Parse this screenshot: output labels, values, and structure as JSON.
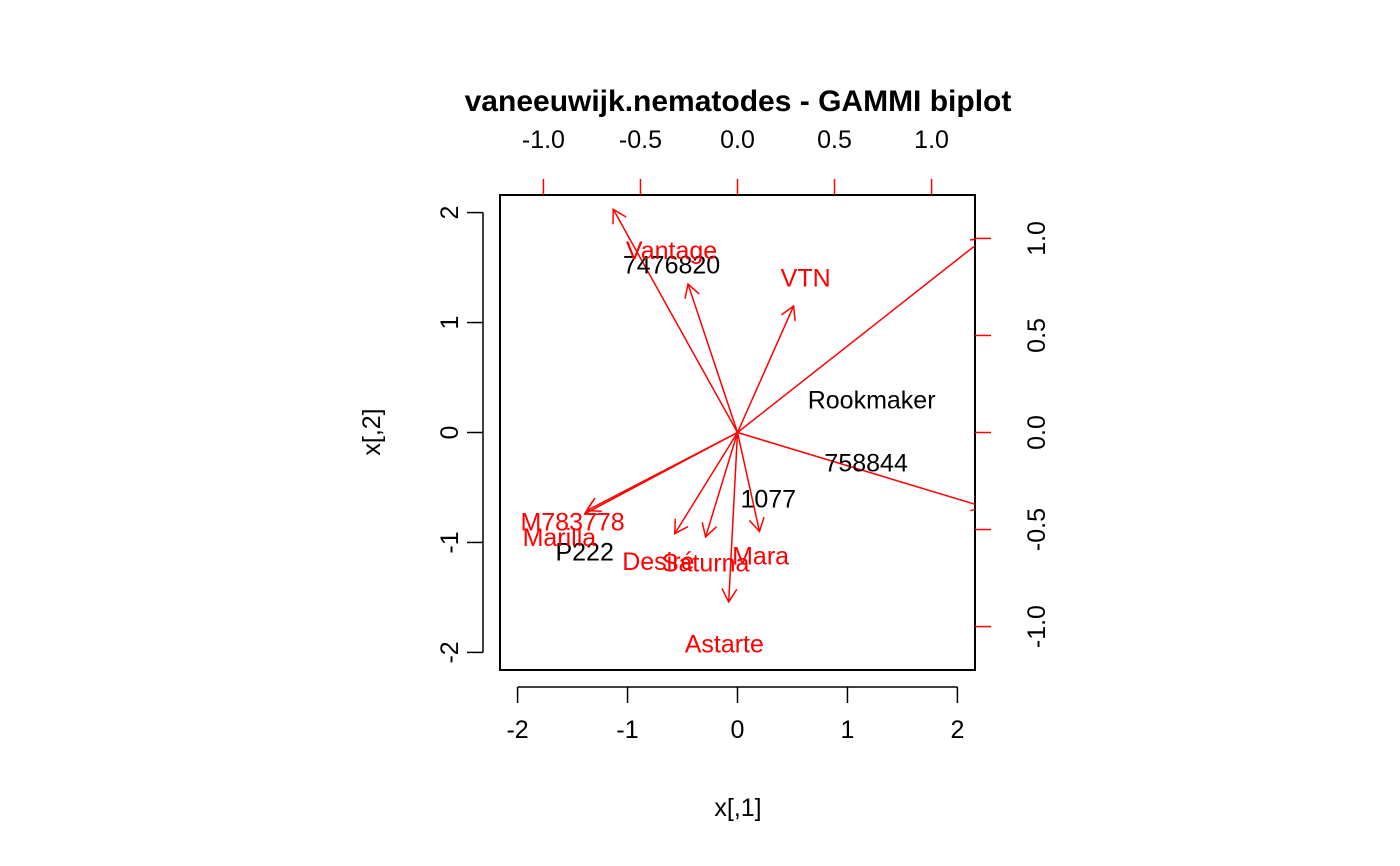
{
  "chart_data": {
    "type": "scatter",
    "title": "vaneeuwijk.nematodes - GAMMI biplot",
    "xlabel": "x[,1]",
    "ylabel": "x[,2]",
    "xlim": [
      -2.16,
      2.16
    ],
    "ylim": [
      -2.16,
      2.16
    ],
    "x_ticks": [
      -2,
      -1,
      0,
      1,
      2
    ],
    "y_ticks": [
      -2,
      -1,
      0,
      1,
      2
    ],
    "x_tick_labels": [
      "-2",
      "-1",
      "0",
      "1",
      "2"
    ],
    "y_tick_labels": [
      "-2",
      "-1",
      "0",
      "1",
      "2"
    ],
    "top_ticks": [
      -1.0,
      -0.5,
      0.0,
      0.5,
      1.0
    ],
    "top_tick_labels": [
      "-1.0",
      "-0.5",
      "0.0",
      "0.5",
      "1.0"
    ],
    "right_ticks": [
      -1.0,
      -0.5,
      0.0,
      0.5,
      1.0
    ],
    "right_tick_labels": [
      "-1.0",
      "-0.5",
      "0.0",
      "0.5",
      "1.0"
    ],
    "secondary_scale": 1.765,
    "colors": {
      "points": "#000000",
      "variables": "#ff0000",
      "axes": "#000000",
      "secondary_axes": "#ff0000"
    },
    "points": [
      {
        "label": "7476820",
        "x": -0.6,
        "y": 1.52
      },
      {
        "label": "Rookmaker",
        "x": 1.22,
        "y": 0.29
      },
      {
        "label": "758844",
        "x": 1.17,
        "y": -0.28
      },
      {
        "label": "1077",
        "x": 0.28,
        "y": -0.61
      },
      {
        "label": "P222",
        "x": -1.39,
        "y": -1.09
      }
    ],
    "variables": [
      {
        "label": "Vantage",
        "x": -1.13,
        "y": 2.03,
        "lx": -0.6,
        "ly": 1.65
      },
      {
        "label": "VTN",
        "x": 0.51,
        "y": 1.15,
        "lx": 0.62,
        "ly": 1.4
      },
      {
        "label": "M783778",
        "x": -1.37,
        "y": -0.71,
        "lx": -1.5,
        "ly": -0.82
      },
      {
        "label": "Marilla",
        "x": -1.39,
        "y": -0.74,
        "lx": -1.62,
        "ly": -0.96
      },
      {
        "label": "Desiré",
        "x": -0.57,
        "y": -0.92,
        "lx": -0.72,
        "ly": -1.18
      },
      {
        "label": "Saturna",
        "x": -0.29,
        "y": -0.95,
        "lx": -0.29,
        "ly": -1.19
      },
      {
        "label": "Mara",
        "x": 0.2,
        "y": -0.9,
        "lx": 0.21,
        "ly": -1.13
      },
      {
        "label": "Astarte",
        "x": -0.08,
        "y": -1.54,
        "lx": -0.12,
        "ly": -1.93
      },
      {
        "label": "",
        "x": -0.45,
        "y": 1.35,
        "lx": null,
        "ly": null
      },
      {
        "label": "",
        "x": 2.25,
        "y": 1.77,
        "lx": null,
        "ly": null
      },
      {
        "label": "",
        "x": 2.25,
        "y": -0.68,
        "lx": null,
        "ly": null
      }
    ]
  }
}
